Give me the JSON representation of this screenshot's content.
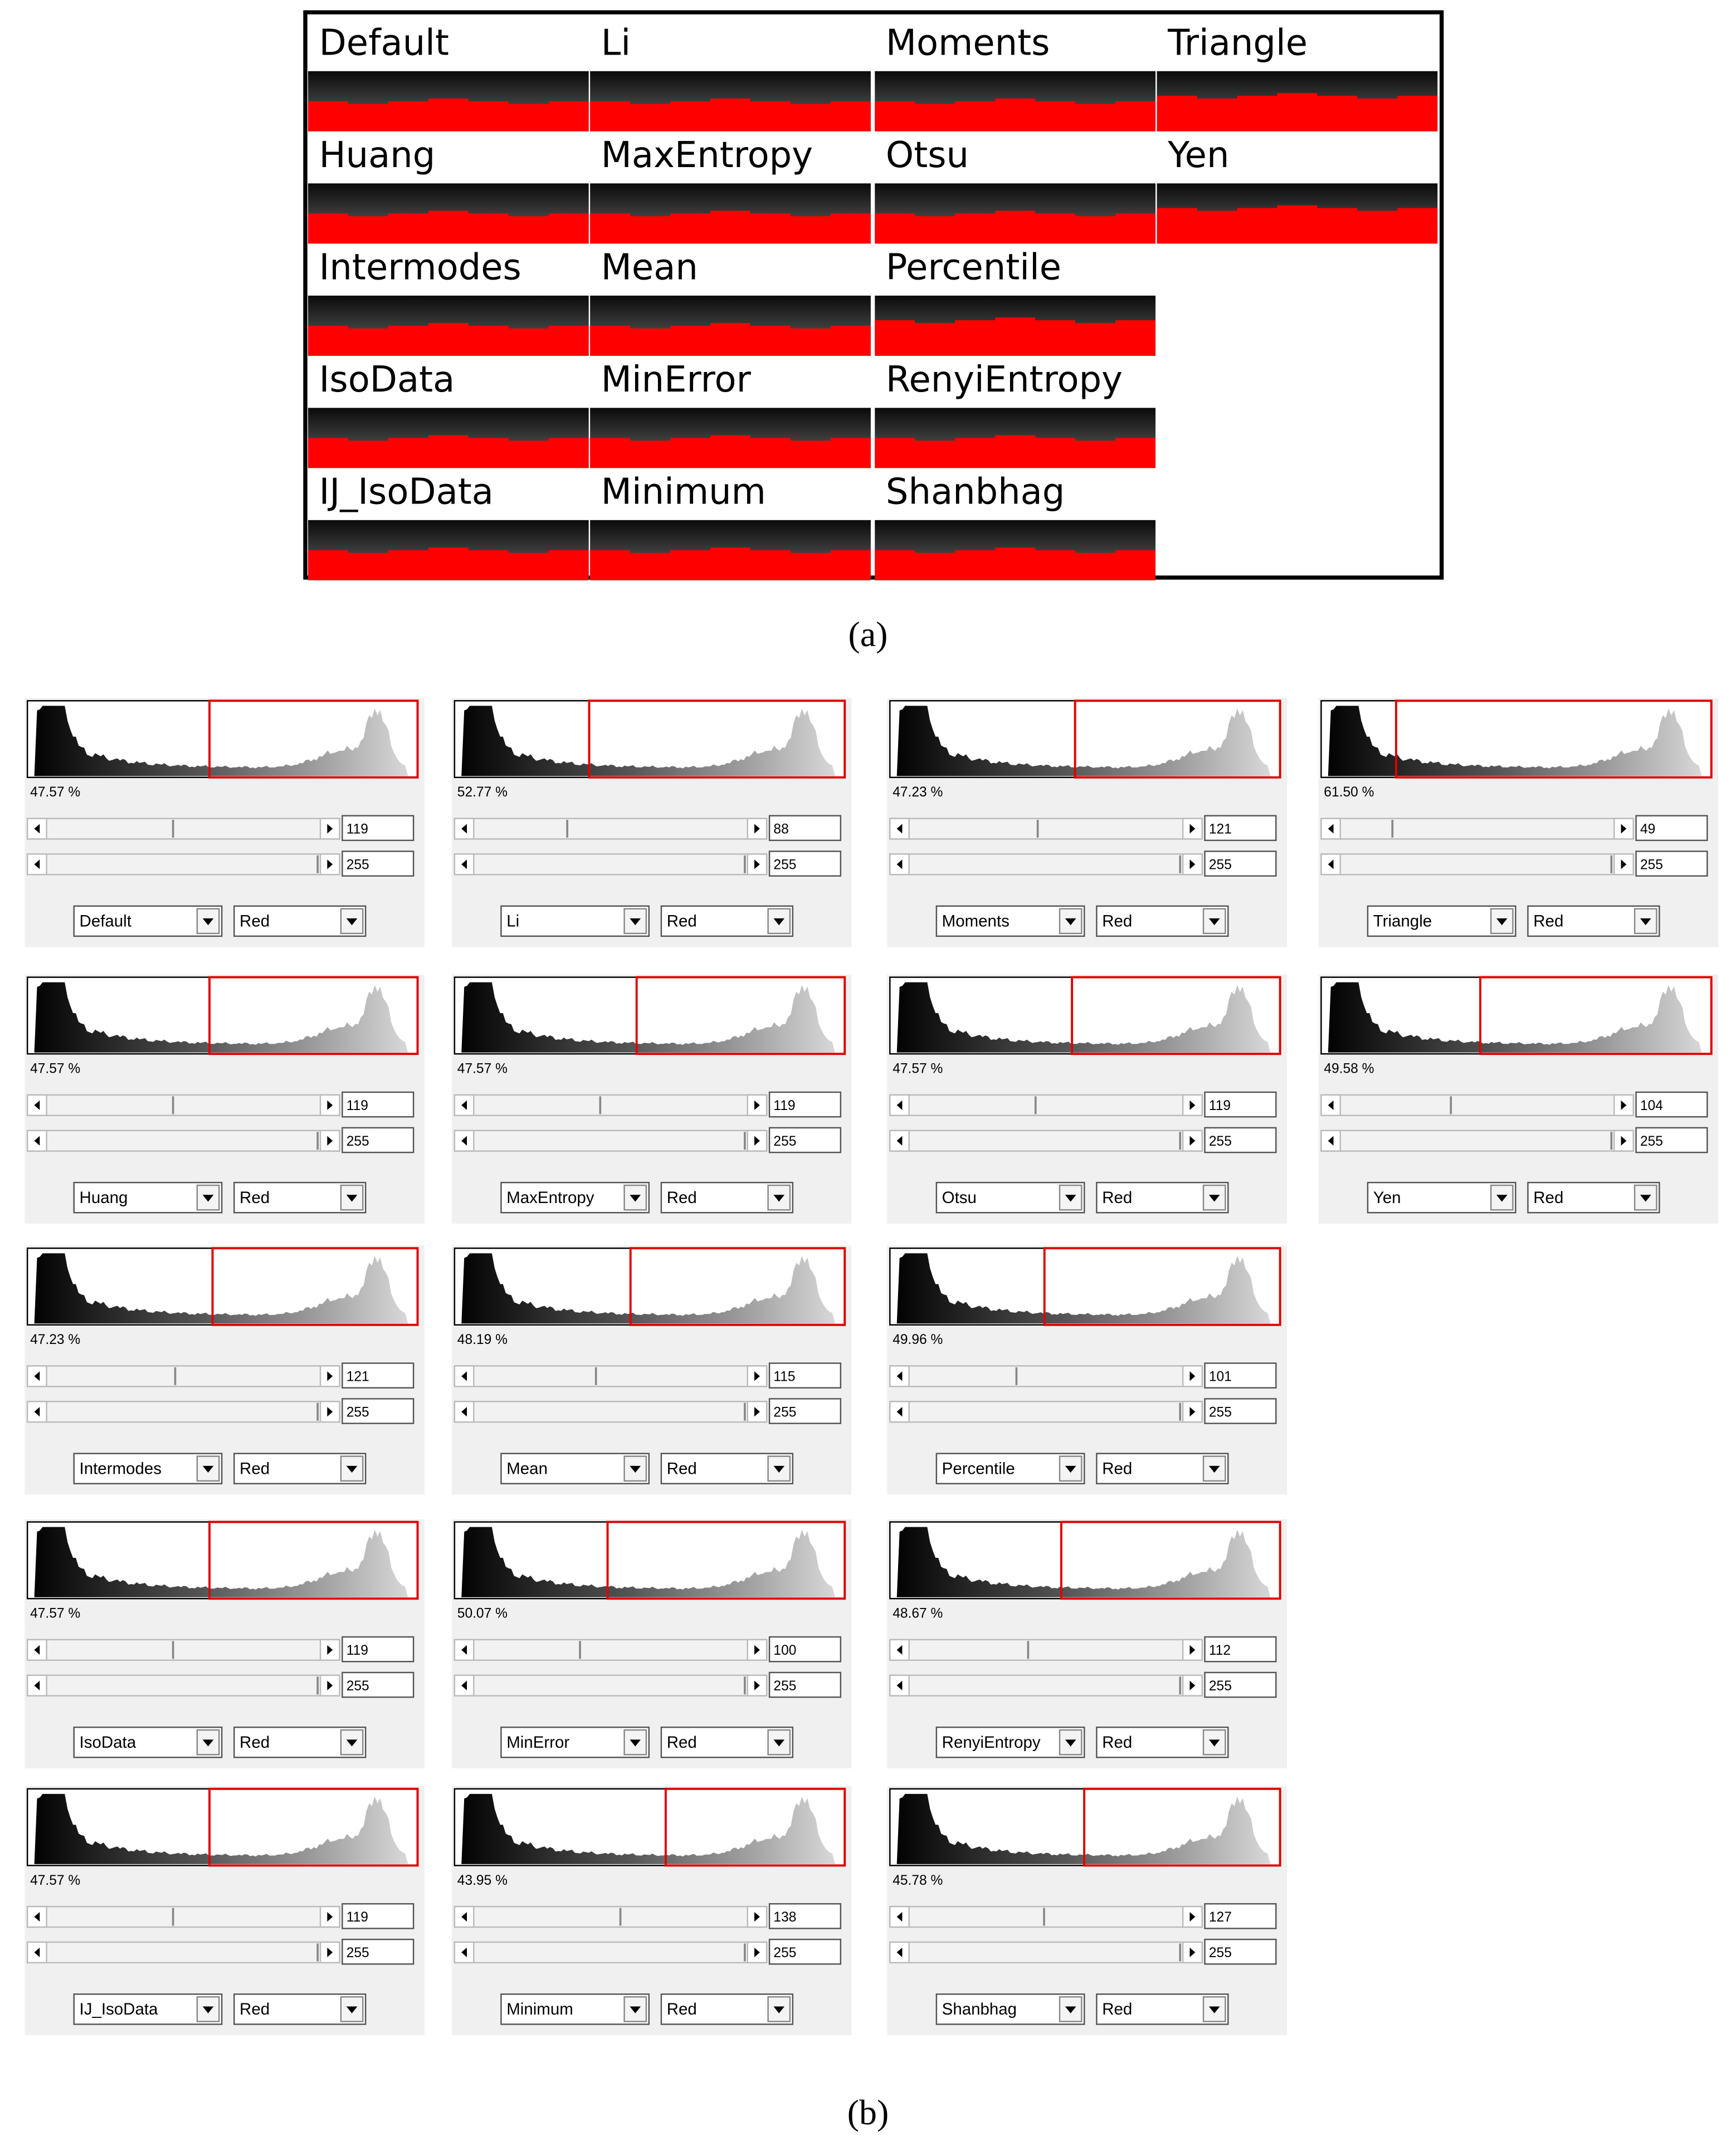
{
  "figure_a": {
    "columns": [
      [
        "Default",
        "Huang",
        "Intermodes",
        "IsoData",
        "IJ_IsoData"
      ],
      [
        "Li",
        "MaxEntropy",
        "Mean",
        "MinError",
        "Minimum"
      ],
      [
        "Moments",
        "Otsu",
        "Percentile",
        "RenyiEntropy",
        "Shanbhag"
      ],
      [
        "Triangle",
        "Yen"
      ]
    ]
  },
  "caption_a": "(a)",
  "figure_b": {
    "rows": [
      [
        {
          "method": "Default",
          "percent": "47.57 %",
          "threshold": 119,
          "max": 255,
          "channel": "Red"
        },
        {
          "method": "Li",
          "percent": "52.77 %",
          "threshold": 88,
          "max": 255,
          "channel": "Red"
        },
        {
          "method": "Moments",
          "percent": "47.23 %",
          "threshold": 121,
          "max": 255,
          "channel": "Red"
        },
        {
          "method": "Triangle",
          "percent": "61.50 %",
          "threshold": 49,
          "max": 255,
          "channel": "Red"
        }
      ],
      [
        {
          "method": "Huang",
          "percent": "47.57 %",
          "threshold": 119,
          "max": 255,
          "channel": "Red"
        },
        {
          "method": "MaxEntropy",
          "percent": "47.57 %",
          "threshold": 119,
          "max": 255,
          "channel": "Red"
        },
        {
          "method": "Otsu",
          "percent": "47.57 %",
          "threshold": 119,
          "max": 255,
          "channel": "Red"
        },
        {
          "method": "Yen",
          "percent": "49.58 %",
          "threshold": 104,
          "max": 255,
          "channel": "Red"
        }
      ],
      [
        {
          "method": "Intermodes",
          "percent": "47.23 %",
          "threshold": 121,
          "max": 255,
          "channel": "Red"
        },
        {
          "method": "Mean",
          "percent": "48.19 %",
          "threshold": 115,
          "max": 255,
          "channel": "Red"
        },
        {
          "method": "Percentile",
          "percent": "49.96 %",
          "threshold": 101,
          "max": 255,
          "channel": "Red"
        }
      ],
      [
        {
          "method": "IsoData",
          "percent": "47.57 %",
          "threshold": 119,
          "max": 255,
          "channel": "Red"
        },
        {
          "method": "MinError",
          "percent": "50.07 %",
          "threshold": 100,
          "max": 255,
          "channel": "Red"
        },
        {
          "method": "RenyiEntropy",
          "percent": "48.67 %",
          "threshold": 112,
          "max": 255,
          "channel": "Red"
        }
      ],
      [
        {
          "method": "IJ_IsoData",
          "percent": "47.57 %",
          "threshold": 119,
          "max": 255,
          "channel": "Red"
        },
        {
          "method": "Minimum",
          "percent": "43.95 %",
          "threshold": 138,
          "max": 255,
          "channel": "Red"
        },
        {
          "method": "Shanbhag",
          "percent": "45.78 %",
          "threshold": 127,
          "max": 255,
          "channel": "Red"
        }
      ]
    ]
  },
  "caption_b": "(b)"
}
